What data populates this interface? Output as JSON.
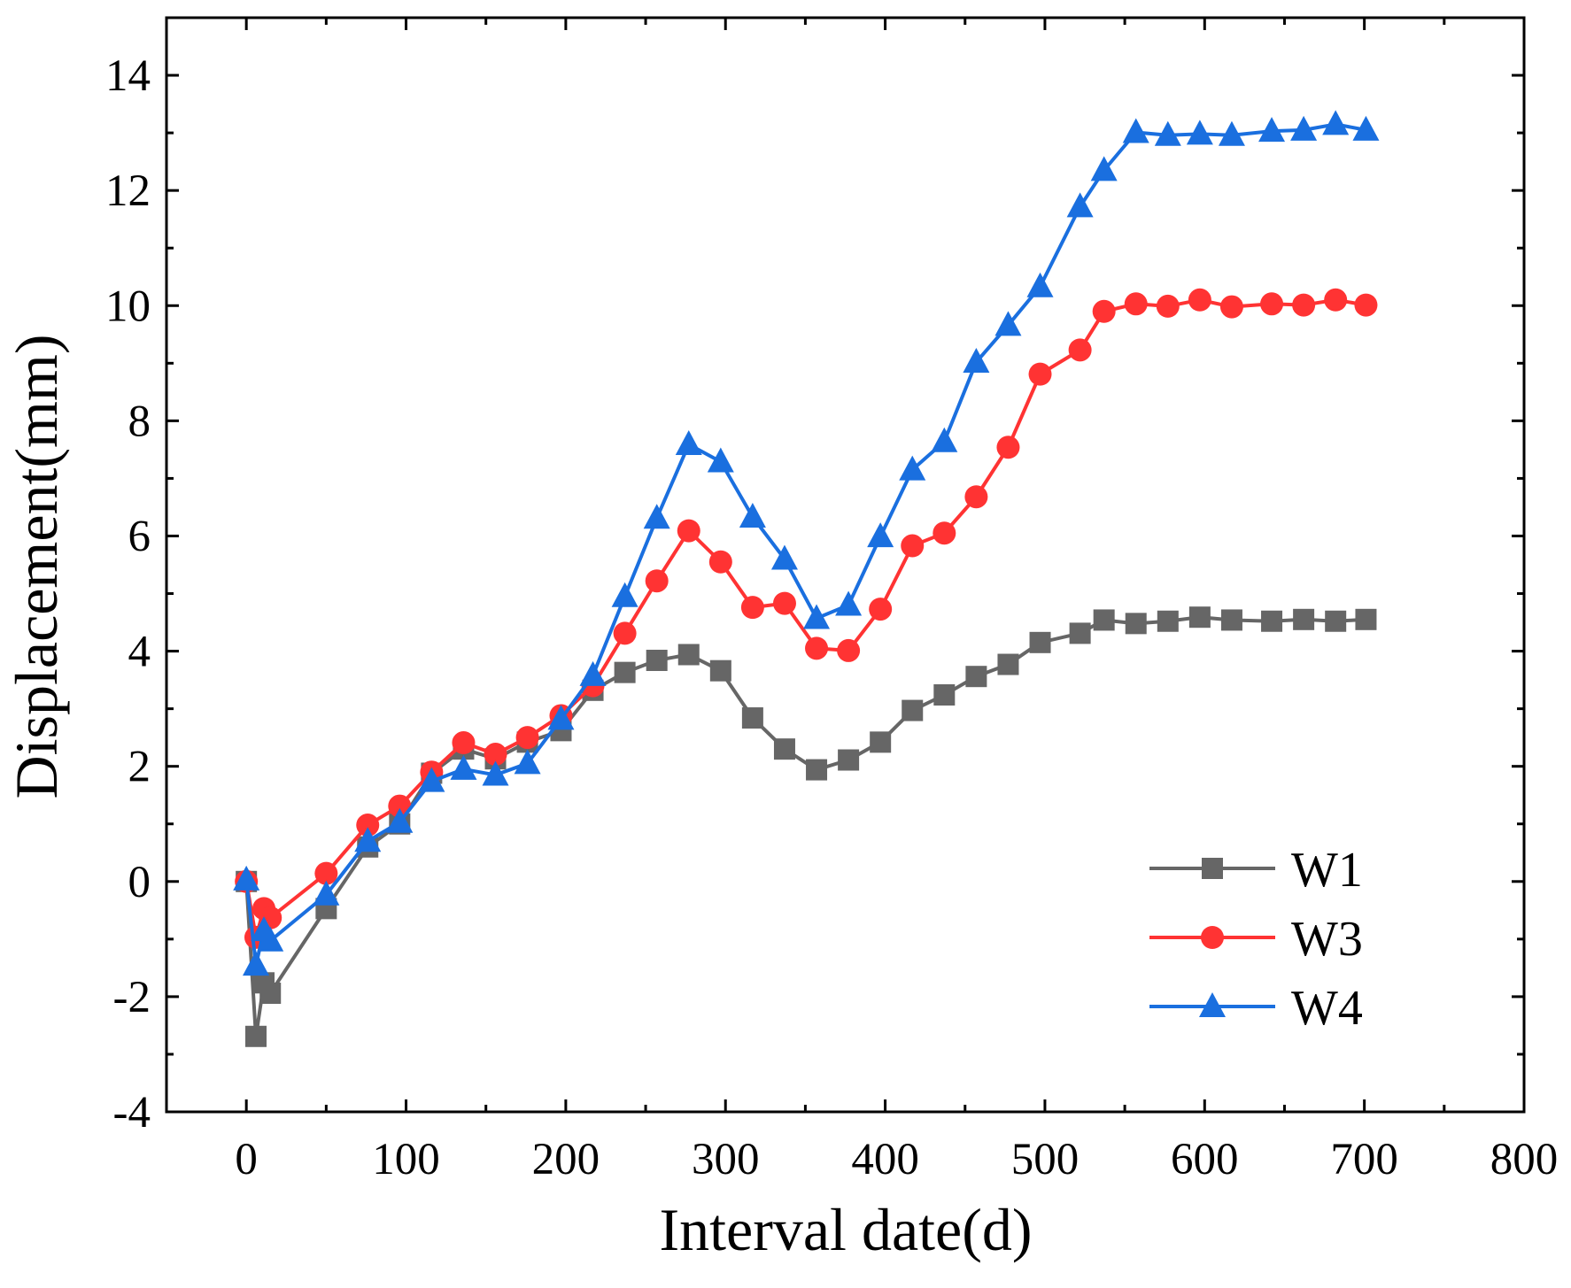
{
  "chart_data": {
    "type": "line",
    "title": "",
    "xlabel": "Interval date(d)",
    "ylabel": "Displacement(mm)",
    "xlim": [
      -50,
      800
    ],
    "ylim": [
      -4,
      15
    ],
    "xticks": [
      0,
      100,
      200,
      300,
      400,
      500,
      600,
      700,
      800
    ],
    "yticks": [
      -4,
      -2,
      0,
      2,
      4,
      6,
      8,
      10,
      12,
      14
    ],
    "grid": false,
    "legend_position": "bottom-right",
    "x": [
      0,
      6,
      11,
      15,
      50,
      76,
      96,
      116,
      136,
      156,
      176,
      197,
      217,
      237,
      257,
      277,
      297,
      317,
      337,
      357,
      377,
      397,
      417,
      437,
      457,
      477,
      497,
      522,
      537,
      557,
      577,
      597,
      617,
      642,
      662,
      682,
      701
    ],
    "series": [
      {
        "name": "W1",
        "marker": "square",
        "color": "#666666",
        "values": [
          0,
          -2.69,
          -1.76,
          -1.94,
          -0.47,
          0.6,
          1.0,
          1.88,
          2.3,
          2.13,
          2.42,
          2.62,
          3.32,
          3.63,
          3.84,
          3.94,
          3.66,
          2.84,
          2.3,
          1.94,
          2.11,
          2.42,
          2.97,
          3.24,
          3.56,
          3.77,
          4.15,
          4.31,
          4.54,
          4.48,
          4.52,
          4.59,
          4.54,
          4.52,
          4.55,
          4.52,
          4.55
        ]
      },
      {
        "name": "W3",
        "marker": "circle",
        "color": "#ff3333",
        "values": [
          0,
          -0.97,
          -0.47,
          -0.63,
          0.14,
          0.98,
          1.31,
          1.9,
          2.41,
          2.21,
          2.5,
          2.88,
          3.4,
          4.31,
          5.22,
          6.09,
          5.55,
          4.76,
          4.83,
          4.05,
          4.01,
          4.73,
          5.83,
          6.05,
          6.68,
          7.54,
          8.81,
          9.23,
          9.9,
          10.03,
          9.99,
          10.1,
          9.98,
          10.03,
          10.01,
          10.1,
          10.01
        ]
      },
      {
        "name": "W4",
        "marker": "triangle",
        "color": "#1a6fdf",
        "values": [
          0.03,
          -1.45,
          -0.85,
          -1.03,
          -0.23,
          0.7,
          1.03,
          1.74,
          1.95,
          1.85,
          2.05,
          2.82,
          3.58,
          4.95,
          6.31,
          7.59,
          7.29,
          6.33,
          5.6,
          4.57,
          4.8,
          5.99,
          7.15,
          7.64,
          9.02,
          9.66,
          10.33,
          11.72,
          12.35,
          13.01,
          12.96,
          12.98,
          12.96,
          13.03,
          13.05,
          13.15,
          13.05
        ]
      }
    ]
  }
}
